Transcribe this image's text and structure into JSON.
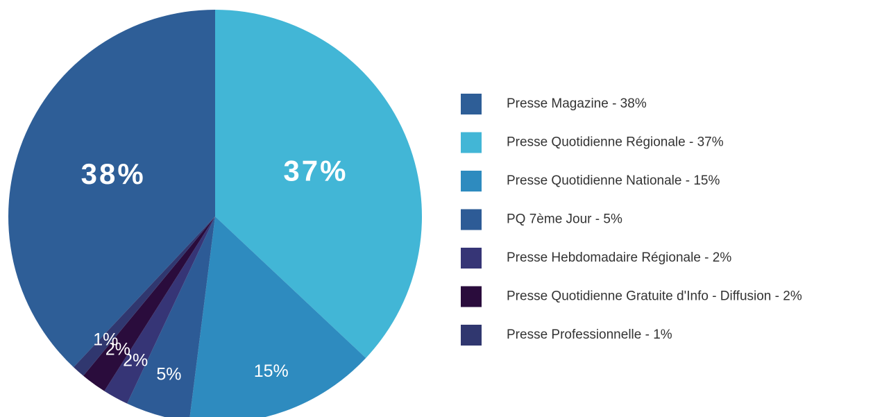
{
  "chart_data": {
    "type": "pie",
    "categories": [
      "Presse Magazine - 38%",
      "Presse Quotidienne Régionale - 37%",
      "Presse Quotidienne Nationale - 15%",
      "PQ 7ème Jour - 5%",
      "Presse Hebdomadaire Régionale - 2%",
      "Presse Quotidienne Gratuite d'Info - Diffusion - 2%",
      "Presse Professionnelle - 1%"
    ],
    "values": [
      38,
      37,
      15,
      5,
      2,
      2,
      1
    ],
    "value_labels": [
      "38%",
      "37%",
      "15%",
      "5%",
      "2%",
      "2%",
      "1%"
    ],
    "colors": [
      "#2e5e97",
      "#42b6d6",
      "#2e8bbf",
      "#2d5b96",
      "#363576",
      "#2a0c3c",
      "#30376f"
    ],
    "legend": "right"
  }
}
